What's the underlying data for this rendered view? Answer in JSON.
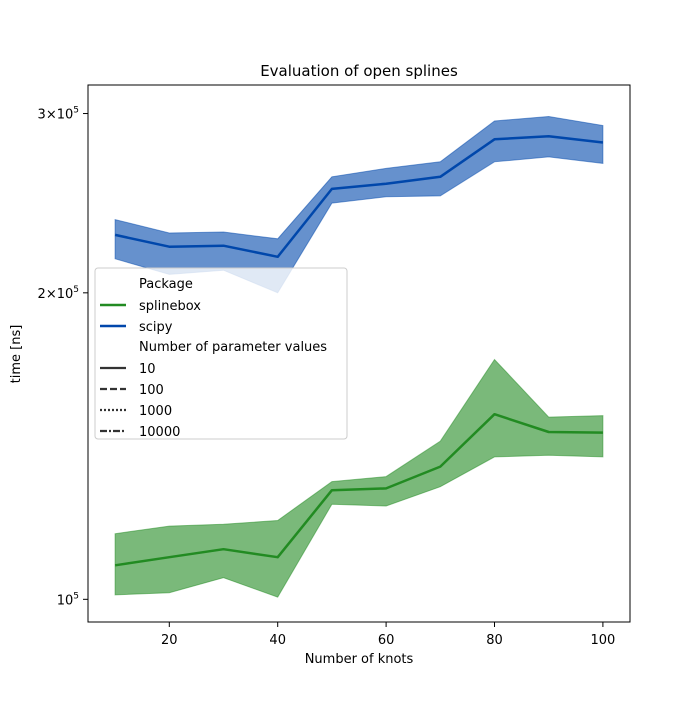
{
  "chart_data": {
    "type": "line",
    "title": "Evaluation of open splines",
    "xlabel": "Number of knots",
    "ylabel": "time [ns]",
    "yscale": "log",
    "xlim": [
      5,
      105
    ],
    "ylim": [
      95000,
      320000
    ],
    "x_ticks": [
      20,
      40,
      60,
      80,
      100
    ],
    "x_tick_labels": [
      "20",
      "40",
      "60",
      "80",
      "100"
    ],
    "y_ticks": [
      {
        "value": 100000,
        "base": "10",
        "exp": "5",
        "mult": ""
      },
      {
        "value": 200000,
        "base": "10",
        "exp": "5",
        "mult": "2×"
      },
      {
        "value": 300000,
        "base": "10",
        "exp": "5",
        "mult": "3×"
      }
    ],
    "x": [
      10,
      20,
      30,
      40,
      50,
      60,
      70,
      80,
      90,
      100
    ],
    "series": [
      {
        "name": "splinebox",
        "color": "#228b22",
        "values": [
          108000,
          110000,
          112000,
          110000,
          128000,
          128500,
          135000,
          152000,
          146000,
          145800
        ],
        "band_lower": [
          101000,
          101500,
          105000,
          100500,
          124000,
          123500,
          129000,
          138000,
          138500,
          138000
        ],
        "band_upper": [
          116000,
          118000,
          118500,
          119500,
          130500,
          132000,
          143000,
          172000,
          151000,
          151500
        ]
      },
      {
        "name": "scipy",
        "color": "#0047ab",
        "values": [
          228000,
          222000,
          222500,
          217000,
          253000,
          256000,
          260000,
          283000,
          285000,
          281000
        ],
        "band_lower": [
          216000,
          208500,
          210500,
          200000,
          245000,
          248500,
          249000,
          269000,
          272000,
          268000
        ],
        "band_upper": [
          236000,
          229000,
          229500,
          226000,
          260000,
          265000,
          269000,
          295000,
          298000,
          292000
        ]
      }
    ],
    "legend": {
      "placement": "center-left",
      "hue_title": "Package",
      "hue_entries": [
        "splinebox",
        "scipy"
      ],
      "style_title": "Number of parameter values",
      "style_entries": [
        "10",
        "100",
        "1000",
        "10000"
      ]
    }
  }
}
